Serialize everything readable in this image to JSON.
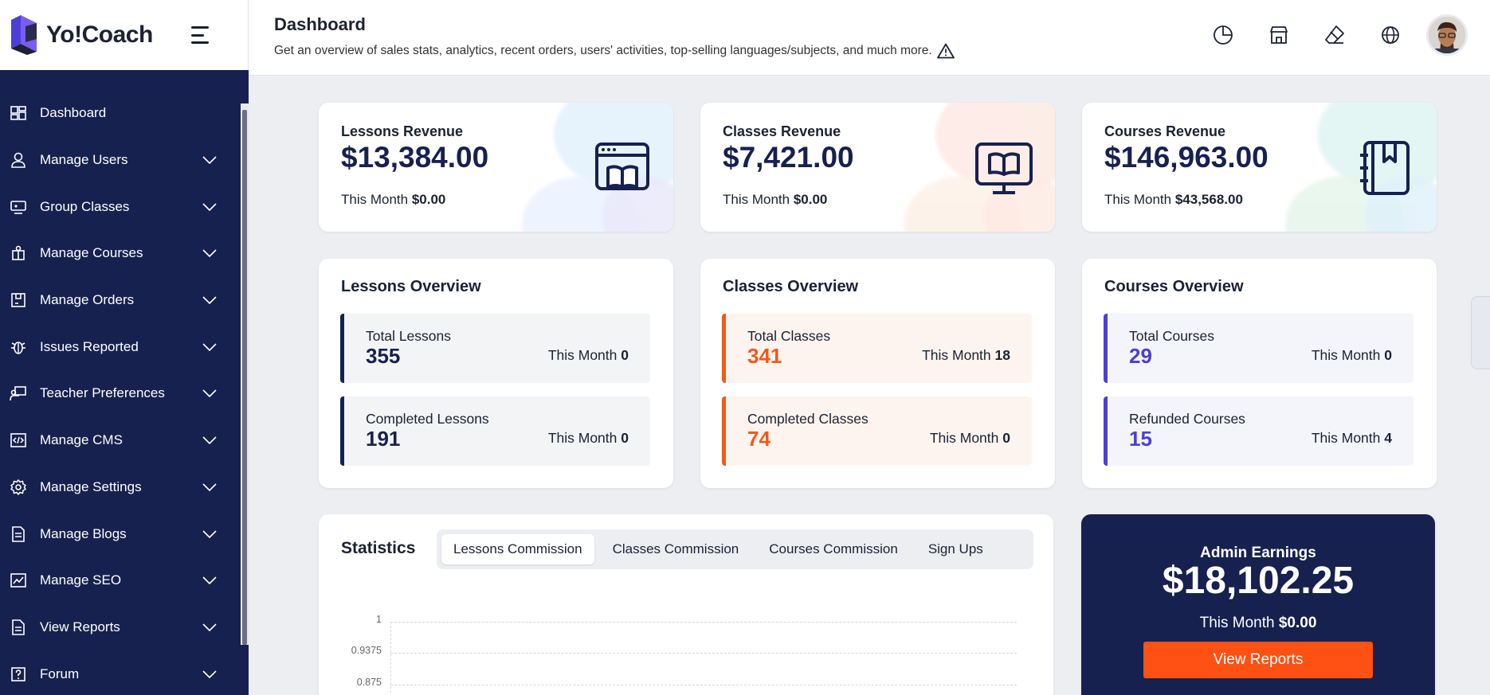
{
  "brand": {
    "name": "Yo!Coach"
  },
  "sidebar": {
    "items": [
      {
        "label": "Dashboard",
        "icon": "dashboard-icon"
      },
      {
        "label": "Manage Users",
        "icon": "user-icon"
      },
      {
        "label": "Group Classes",
        "icon": "group-classes-icon"
      },
      {
        "label": "Manage Courses",
        "icon": "courses-icon"
      },
      {
        "label": "Manage Orders",
        "icon": "orders-icon"
      },
      {
        "label": "Issues Reported",
        "icon": "bug-icon"
      },
      {
        "label": "Teacher Preferences",
        "icon": "teacher-icon"
      },
      {
        "label": "Manage CMS",
        "icon": "code-icon"
      },
      {
        "label": "Manage Settings",
        "icon": "gear-icon"
      },
      {
        "label": "Manage Blogs",
        "icon": "blog-icon"
      },
      {
        "label": "Manage SEO",
        "icon": "seo-icon"
      },
      {
        "label": "View Reports",
        "icon": "report-icon"
      },
      {
        "label": "Forum",
        "icon": "question-icon"
      }
    ]
  },
  "header": {
    "title": "Dashboard",
    "subtitle": "Get an overview of sales stats, analytics, recent orders, users' activities, top-selling languages/subjects, and much more.",
    "icons": [
      "pie-chart-icon",
      "store-icon",
      "eraser-icon",
      "globe-icon"
    ]
  },
  "revenue": [
    {
      "title": "Lessons Revenue",
      "amount": "$13,384.00",
      "month_label": "This Month",
      "month_value": "$0.00",
      "icon": "book-browser-icon"
    },
    {
      "title": "Classes Revenue",
      "amount": "$7,421.00",
      "month_label": "This Month",
      "month_value": "$0.00",
      "icon": "monitor-book-icon"
    },
    {
      "title": "Courses Revenue",
      "amount": "$146,963.00",
      "month_label": "This Month",
      "month_value": "$43,568.00",
      "icon": "notebook-icon"
    }
  ],
  "overview": [
    {
      "title": "Lessons Overview",
      "color": "#17214f",
      "bg": "#f3f4f6",
      "stats": [
        {
          "label": "Total Lessons",
          "value": "355",
          "month_label": "This Month",
          "month_value": "0"
        },
        {
          "label": "Completed Lessons",
          "value": "191",
          "month_label": "This Month",
          "month_value": "0"
        }
      ]
    },
    {
      "title": "Classes Overview",
      "color": "#f05a1a",
      "bg": "#fdf4ef",
      "stats": [
        {
          "label": "Total Classes",
          "value": "341",
          "month_label": "This Month",
          "month_value": "18"
        },
        {
          "label": "Completed Classes",
          "value": "74",
          "month_label": "This Month",
          "month_value": "0"
        }
      ]
    },
    {
      "title": "Courses Overview",
      "color": "#4b3fd6",
      "bg": "#f4f4fb",
      "stats": [
        {
          "label": "Total Courses",
          "value": "29",
          "month_label": "This Month",
          "month_value": "0"
        },
        {
          "label": "Refunded Courses",
          "value": "15",
          "month_label": "This Month",
          "month_value": "4"
        }
      ]
    }
  ],
  "statistics": {
    "title": "Statistics",
    "tabs": [
      "Lessons Commission",
      "Classes Commission",
      "Courses Commission",
      "Sign Ups"
    ],
    "active_tab": 0,
    "y_ticks": [
      "1",
      "0.9375",
      "0.875"
    ]
  },
  "earnings": {
    "title": "Admin Earnings",
    "amount": "$18,102.25",
    "month_label": "This Month",
    "month_value": "$0.00",
    "button": "View Reports"
  }
}
